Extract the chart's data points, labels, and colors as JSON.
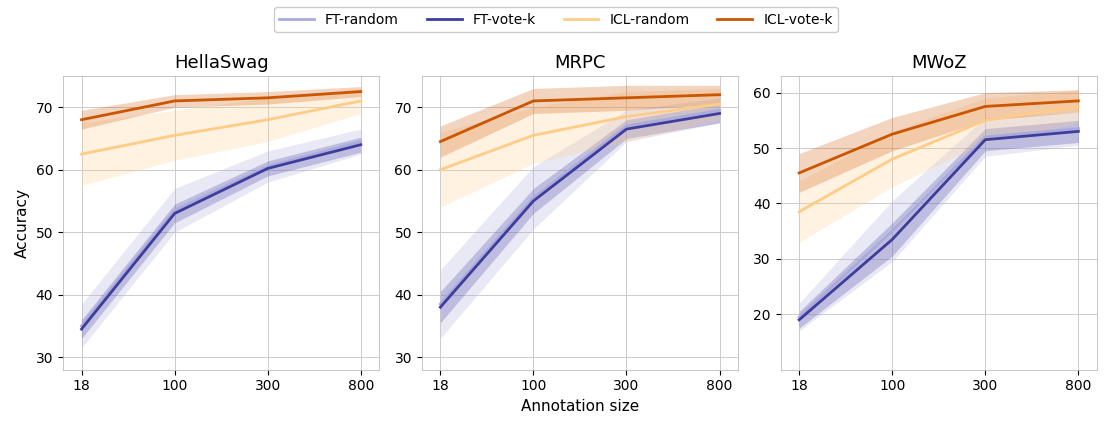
{
  "x": [
    18,
    100,
    300,
    800
  ],
  "x_positions": [
    0,
    1,
    2,
    3
  ],
  "datasets": {
    "HellaSwag": {
      "FT_random_mean": [
        35.0,
        53.5,
        60.5,
        64.5
      ],
      "FT_random_std": [
        3.5,
        3.5,
        2.5,
        2.0
      ],
      "FT_vote_mean": [
        34.5,
        53.0,
        60.2,
        64.0
      ],
      "FT_vote_std": [
        1.5,
        1.5,
        1.2,
        1.2
      ],
      "ICL_random_mean": [
        62.5,
        65.5,
        68.0,
        71.0
      ],
      "ICL_random_std": [
        5.0,
        4.0,
        3.5,
        2.0
      ],
      "ICL_vote_mean": [
        68.0,
        71.0,
        71.5,
        72.5
      ],
      "ICL_vote_std": [
        1.5,
        1.0,
        1.0,
        0.8
      ],
      "ylim": [
        28,
        75
      ],
      "yticks": [
        30,
        40,
        50,
        60,
        70
      ]
    },
    "MRPC": {
      "FT_random_mean": [
        38.5,
        55.5,
        67.0,
        69.5
      ],
      "FT_random_std": [
        5.5,
        5.0,
        2.5,
        2.0
      ],
      "FT_vote_mean": [
        38.0,
        55.0,
        66.5,
        69.0
      ],
      "FT_vote_std": [
        2.5,
        2.0,
        1.5,
        1.5
      ],
      "ICL_random_mean": [
        60.0,
        65.5,
        68.5,
        70.5
      ],
      "ICL_random_std": [
        6.0,
        4.5,
        4.0,
        2.5
      ],
      "ICL_vote_mean": [
        64.5,
        71.0,
        71.5,
        72.0
      ],
      "ICL_vote_std": [
        2.5,
        2.0,
        2.0,
        1.5
      ],
      "ylim": [
        28,
        75
      ],
      "yticks": [
        30,
        40,
        50,
        60,
        70
      ]
    },
    "MWoZ": {
      "FT_random_mean": [
        19.5,
        35.0,
        52.0,
        53.5
      ],
      "FT_random_std": [
        2.5,
        5.5,
        3.5,
        3.0
      ],
      "FT_vote_mean": [
        19.0,
        33.5,
        51.5,
        53.0
      ],
      "FT_vote_std": [
        1.5,
        3.0,
        2.0,
        2.0
      ],
      "ICL_random_mean": [
        38.5,
        48.0,
        55.0,
        57.5
      ],
      "ICL_random_std": [
        5.5,
        5.0,
        4.0,
        3.0
      ],
      "ICL_vote_mean": [
        45.5,
        52.5,
        57.5,
        58.5
      ],
      "ICL_vote_std": [
        3.5,
        3.0,
        2.5,
        2.0
      ],
      "ylim": [
        10,
        63
      ],
      "yticks": [
        20,
        30,
        40,
        50,
        60
      ]
    }
  },
  "colors": {
    "FT_random": "#aaaadd",
    "FT_vote": "#3f3d9c",
    "ICL_random": "#ffcc88",
    "ICL_vote": "#cc5500"
  },
  "alpha_fill": 0.25,
  "linewidth": 2.0,
  "xlabel": "Annotation size",
  "ylabel": "Accuracy",
  "legend_labels": [
    "FT-random",
    "FT-vote-k",
    "ICL-random",
    "ICL-vote-k"
  ],
  "x_ticklabels": [
    "18",
    "100",
    "300",
    "800"
  ]
}
